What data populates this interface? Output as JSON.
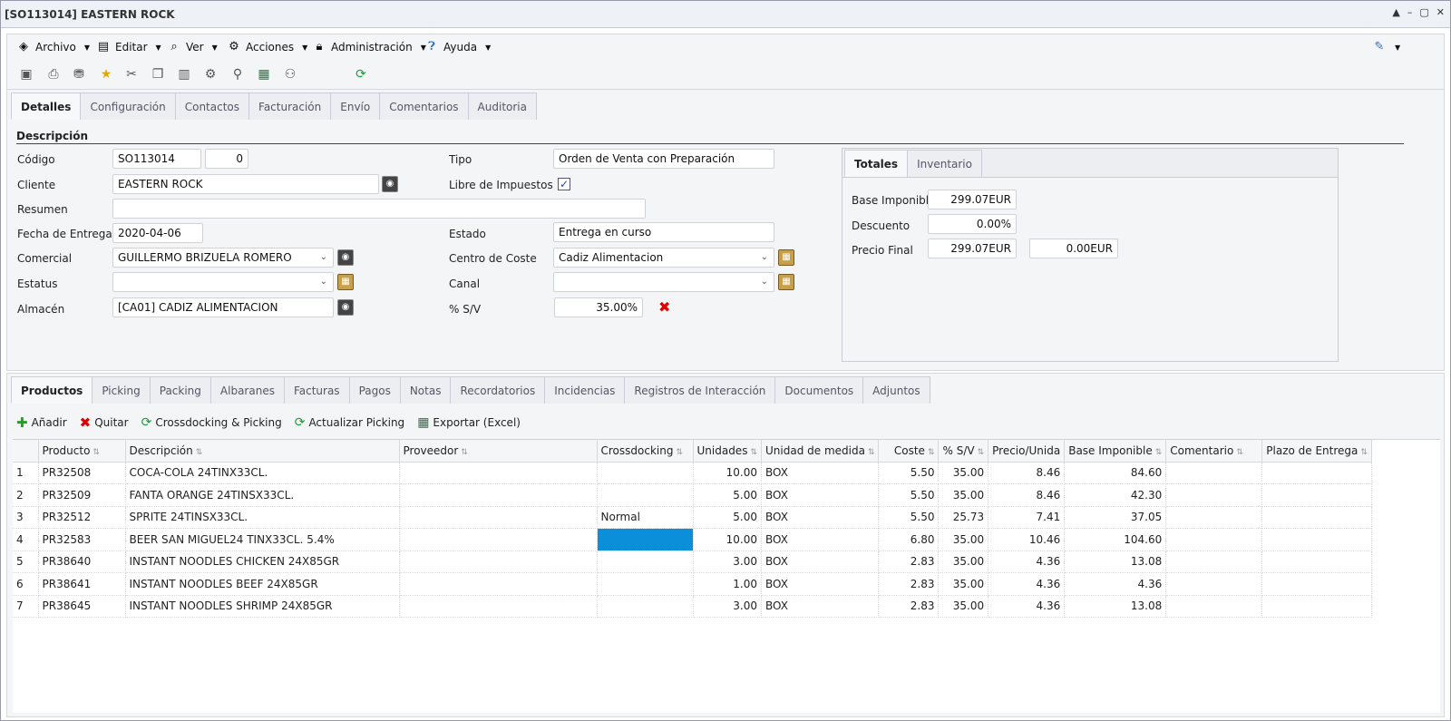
{
  "window": {
    "title": "[SO113014] EASTERN ROCK",
    "buttons": [
      "▲",
      "–",
      "▢",
      "✕"
    ]
  },
  "menu": [
    {
      "label": "Archivo",
      "icon": "archive-icon"
    },
    {
      "label": "Editar",
      "icon": "edit-icon"
    },
    {
      "label": "Ver",
      "icon": "view-icon"
    },
    {
      "label": "Acciones",
      "icon": "actions-icon"
    },
    {
      "label": "Administración",
      "icon": "lock-icon"
    },
    {
      "label": "Ayuda",
      "icon": "help-icon"
    }
  ],
  "toolbar_icons": [
    "save-icon",
    "print-icon",
    "stamp-icon",
    "star-icon",
    "cut-icon",
    "copy-icon",
    "paste-icon",
    "gears-icon",
    "attach-icon",
    "excel-icon",
    "users-icon",
    "refresh-icon"
  ],
  "top_tabs": [
    "Detalles",
    "Configuración",
    "Contactos",
    "Facturación",
    "Envío",
    "Comentarios",
    "Auditoria"
  ],
  "section_title": "Descripción",
  "form": {
    "codigo_label": "Código",
    "codigo": "SO113014",
    "codigo_rev": "0",
    "cliente_label": "Cliente",
    "cliente": "EASTERN ROCK",
    "resumen_label": "Resumen",
    "resumen": "",
    "fecha_label": "Fecha de Entrega",
    "fecha": "2020-04-06",
    "comercial_label": "Comercial",
    "comercial": "GUILLERMO BRIZUELA ROMERO",
    "estatus_label": "Estatus",
    "estatus": "",
    "almacen_label": "Almacén",
    "almacen": "[CA01] CADIZ ALIMENTACION",
    "tipo_label": "Tipo",
    "tipo": "Orden de Venta con Preparación",
    "libre_label": "Libre de Impuestos",
    "libre_checked": true,
    "estado_label": "Estado",
    "estado": "Entrega en curso",
    "centro_label": "Centro de Coste",
    "centro": "Cadiz Alimentacion",
    "canal_label": "Canal",
    "canal": "",
    "sv_label": "% S/V",
    "sv": "35.00%"
  },
  "totals": {
    "tabs": [
      "Totales",
      "Inventario"
    ],
    "base_label": "Base Imponible",
    "base": "299.07EUR",
    "descuento_label": "Descuento",
    "descuento": "0.00%",
    "final_label": "Precio Final",
    "final": "299.07EUR",
    "final2": "0.00EUR"
  },
  "bottom_tabs": [
    "Productos",
    "Picking",
    "Packing",
    "Albaranes",
    "Facturas",
    "Pagos",
    "Notas",
    "Recordatorios",
    "Incidencias",
    "Registros de Interacción",
    "Documentos",
    "Adjuntos"
  ],
  "actions": [
    {
      "label": "Añadir",
      "icon": "plus-icon"
    },
    {
      "label": "Quitar",
      "icon": "remove-icon"
    },
    {
      "label": "Crossdocking & Picking",
      "icon": "refresh-icon"
    },
    {
      "label": "Actualizar Picking",
      "icon": "refresh-icon"
    },
    {
      "label": "Exportar (Excel)",
      "icon": "excel-icon"
    }
  ],
  "columns": [
    "Producto",
    "Descripción",
    "Proveedor",
    "Crossdocking",
    "Unidades",
    "Unidad de medida",
    "Coste",
    "% S/V",
    "Precio/Unida",
    "Base Imponible",
    "Comentario",
    "Plazo de Entrega"
  ],
  "rows": [
    {
      "n": "1",
      "producto": "PR32508",
      "descripcion": "COCA-COLA 24TINX33CL.",
      "proveedor": "",
      "cross": "",
      "unidades": "10.00",
      "um": "BOX",
      "coste": "5.50",
      "sv": "35.00",
      "precio": "8.46",
      "base": "84.60",
      "comentario": "",
      "plazo": ""
    },
    {
      "n": "2",
      "producto": "PR32509",
      "descripcion": "FANTA ORANGE 24TINSX33CL.",
      "proveedor": "",
      "cross": "",
      "unidades": "5.00",
      "um": "BOX",
      "coste": "5.50",
      "sv": "35.00",
      "precio": "8.46",
      "base": "42.30",
      "comentario": "",
      "plazo": ""
    },
    {
      "n": "3",
      "producto": "PR32512",
      "descripcion": "SPRITE 24TINSX33CL.",
      "proveedor": "",
      "cross": "Normal",
      "unidades": "5.00",
      "um": "BOX",
      "coste": "5.50",
      "sv": "25.73",
      "precio": "7.41",
      "base": "37.05",
      "comentario": "",
      "plazo": ""
    },
    {
      "n": "4",
      "producto": "PR32583",
      "descripcion": "BEER SAN MIGUEL24 TINX33CL. 5.4%",
      "proveedor": "",
      "cross": "",
      "unidades": "10.00",
      "um": "BOX",
      "coste": "6.80",
      "sv": "35.00",
      "precio": "10.46",
      "base": "104.60",
      "comentario": "",
      "plazo": ""
    },
    {
      "n": "5",
      "producto": "PR38640",
      "descripcion": "INSTANT NOODLES CHICKEN 24X85GR",
      "proveedor": "",
      "cross": "",
      "unidades": "3.00",
      "um": "BOX",
      "coste": "2.83",
      "sv": "35.00",
      "precio": "4.36",
      "base": "13.08",
      "comentario": "",
      "plazo": ""
    },
    {
      "n": "6",
      "producto": "PR38641",
      "descripcion": "INSTANT NOODLES BEEF 24X85GR",
      "proveedor": "",
      "cross": "",
      "unidades": "1.00",
      "um": "BOX",
      "coste": "2.83",
      "sv": "35.00",
      "precio": "4.36",
      "base": "4.36",
      "comentario": "",
      "plazo": ""
    },
    {
      "n": "7",
      "producto": "PR38645",
      "descripcion": "INSTANT NOODLES SHRIMP 24X85GR",
      "proveedor": "",
      "cross": "",
      "unidades": "3.00",
      "um": "BOX",
      "coste": "2.83",
      "sv": "35.00",
      "precio": "4.36",
      "base": "13.08",
      "comentario": "",
      "plazo": ""
    }
  ]
}
